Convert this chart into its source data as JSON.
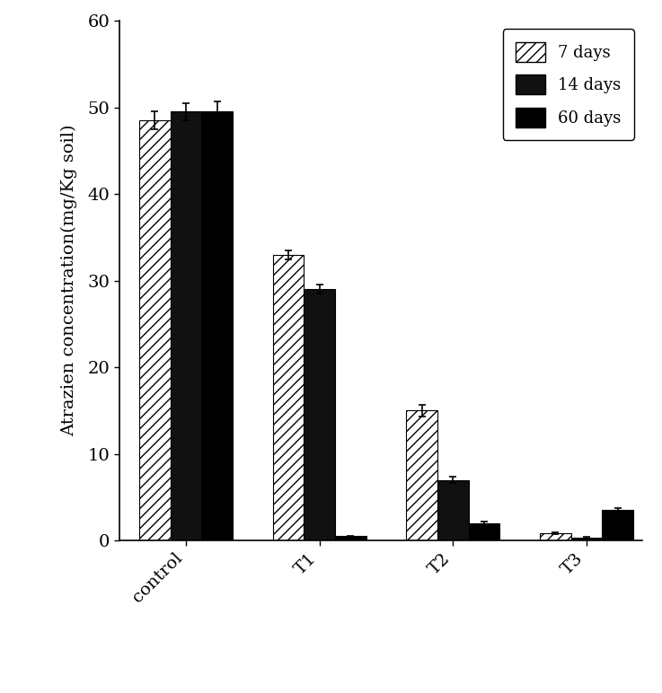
{
  "categories": [
    "control",
    "T1",
    "T2",
    "T3"
  ],
  "series": [
    {
      "label": "7 days",
      "values": [
        48.5,
        33.0,
        15.0,
        0.8
      ],
      "errors": [
        1.0,
        0.5,
        0.7,
        0.1
      ],
      "hatch": "///",
      "facecolor": "#ffffff",
      "edgecolor": "#000000"
    },
    {
      "label": "14 days",
      "values": [
        49.5,
        29.0,
        7.0,
        0.3
      ],
      "errors": [
        1.0,
        0.5,
        0.4,
        0.1
      ],
      "hatch": "",
      "facecolor": "#111111",
      "edgecolor": "#000000"
    },
    {
      "label": "60 days",
      "values": [
        49.5,
        0.5,
        2.0,
        3.5
      ],
      "errors": [
        1.2,
        0.05,
        0.2,
        0.2
      ],
      "hatch": "",
      "facecolor": "#000000",
      "edgecolor": "#000000"
    }
  ],
  "ylabel": "Atrazien concentration(mg/Kg soil)",
  "ylim": [
    0,
    60
  ],
  "yticks": [
    0,
    10,
    20,
    30,
    40,
    50,
    60
  ],
  "bar_width": 0.28,
  "background_color": "#ffffff",
  "label_fontsize": 14,
  "tick_fontsize": 14,
  "legend_fontsize": 13
}
